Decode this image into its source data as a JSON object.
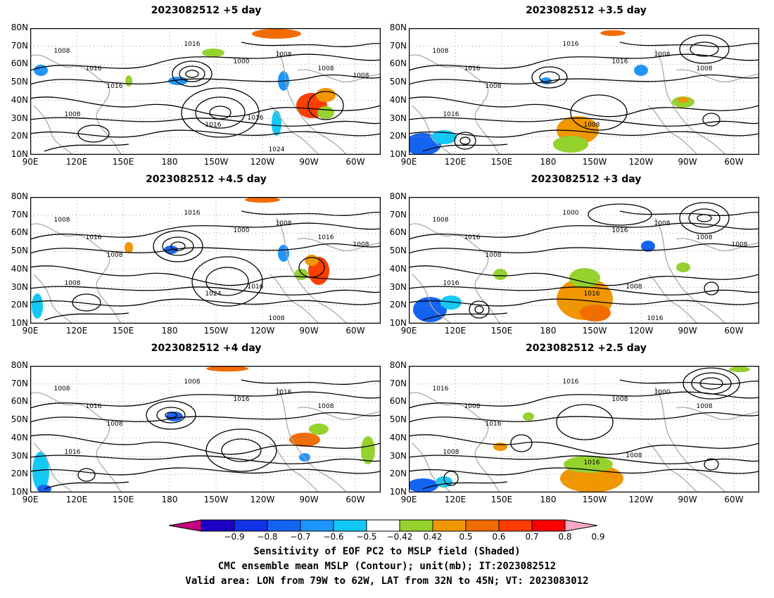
{
  "panels": [
    {
      "title": "2023082512 +5 day",
      "contour_labels": [
        "1008",
        "1016",
        "1016",
        "1008",
        "1000",
        "1008",
        "1016",
        "1008",
        "1016",
        "1016",
        "1024",
        "1008"
      ]
    },
    {
      "title": "2023082512 +3.5 day",
      "contour_labels": [
        "1008",
        "1016",
        "1008",
        "1016",
        "1016",
        "1008",
        "1016",
        "1008",
        "1008"
      ]
    },
    {
      "title": "2023082512 +4.5 day",
      "contour_labels": [
        "1008",
        "1016",
        "1008",
        "1008",
        "1000",
        "1008",
        "1016",
        "1016",
        "1024",
        "1016",
        "1008",
        "1008"
      ]
    },
    {
      "title": "2023082512 +3 day",
      "contour_labels": [
        "1008",
        "1016",
        "1008",
        "1016",
        "1016",
        "1008",
        "1000",
        "1008",
        "1016",
        "1008",
        "1016",
        "1008"
      ]
    },
    {
      "title": "2023082512 +4 day",
      "contour_labels": [
        "1008",
        "1016",
        "1008",
        "1016",
        "1016",
        "1016",
        "1008",
        "1008"
      ]
    },
    {
      "title": "2023082512 +2.5 day",
      "contour_labels": [
        "1016",
        "1008",
        "1016",
        "1008",
        "1008",
        "1000",
        "1016",
        "1008",
        "1016",
        "1008"
      ]
    }
  ],
  "axes": {
    "lat_labels": [
      "80N",
      "70N",
      "60N",
      "50N",
      "40N",
      "30N",
      "20N",
      "10N"
    ],
    "lon_labels": [
      "90E",
      "120E",
      "150E",
      "180",
      "150W",
      "120W",
      "90W",
      "60W"
    ]
  },
  "colorbar": {
    "labels": [
      "−0.9",
      "−0.8",
      "−0.7",
      "−0.6",
      "−0.5",
      "−0.42",
      "0.42",
      "0.5",
      "0.6",
      "0.7",
      "0.8",
      "0.9"
    ],
    "colors": [
      "#c4007f",
      "#1c00c4",
      "#1233e6",
      "#1464f2",
      "#1e96ff",
      "#12c8f5",
      "#ffffff",
      "#96d22d",
      "#f09600",
      "#f26c00",
      "#ff3d00",
      "#ff0000",
      "#f9a8c8"
    ]
  },
  "caption": {
    "line1": "Sensitivity of EOF PC2 to MSLP field (Shaded)",
    "line2": "CMC ensemble mean MSLP (Contour); unit(mb); IT:2023082512",
    "line3": "Valid area: LON from 79W to 62W, LAT from 32N to 45N; VT: 2023083012"
  }
}
